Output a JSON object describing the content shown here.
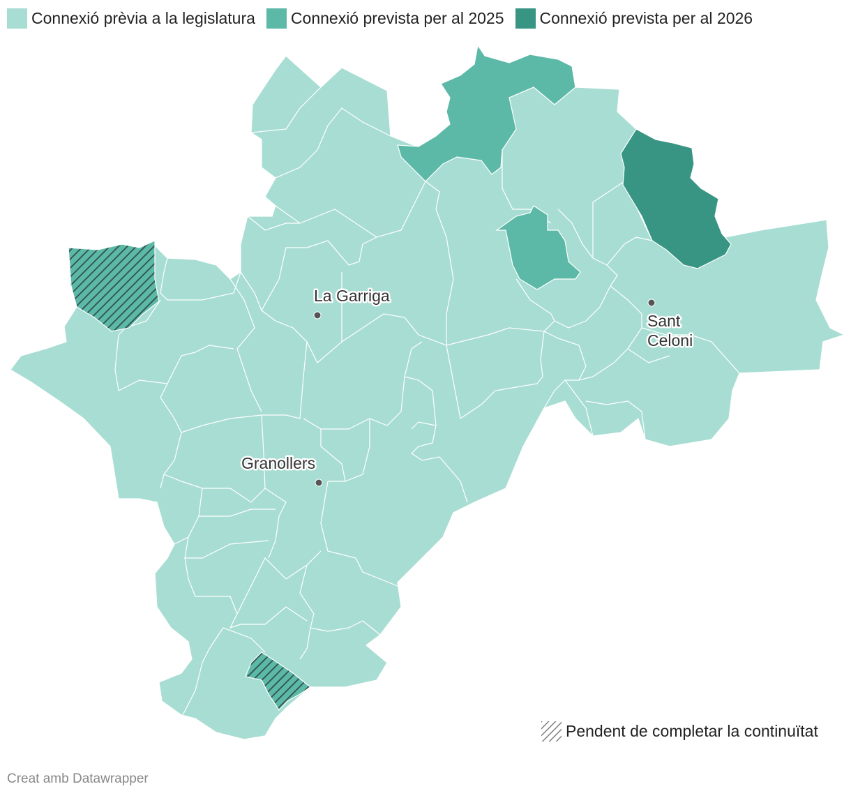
{
  "legend": {
    "items": [
      {
        "label": "Connexió prèvia a la legislatura",
        "color": "#a8ddd3"
      },
      {
        "label": "Connexió prevista per al 2025",
        "color": "#5cb9a7"
      },
      {
        "label": "Connexió prevista per al 2026",
        "color": "#389584"
      }
    ],
    "pending_label": "Pendent de completar la continuïtat"
  },
  "cities": {
    "la_garriga": "La Garriga",
    "granollers": "Granollers",
    "sant_celoni_line1": "Sant",
    "sant_celoni_line2": "Celoni"
  },
  "credit": "Creat amb Datawrapper",
  "colors": {
    "base": "#a8ddd3",
    "y2025": "#5cb9a7",
    "y2026": "#389584",
    "border": "#ffffff",
    "dot": "#555555"
  }
}
